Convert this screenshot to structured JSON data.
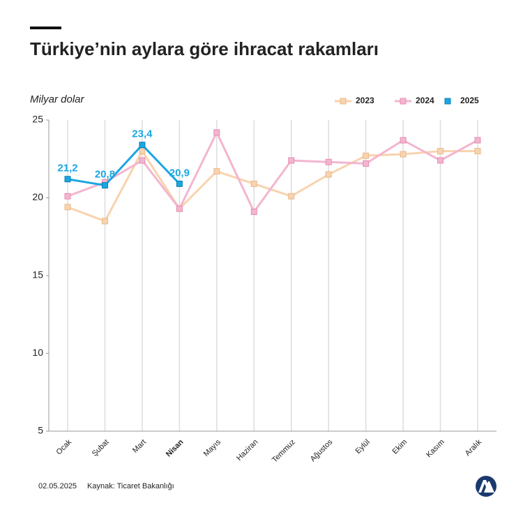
{
  "chart_data": {
    "type": "line",
    "title": "Türkiye’nin aylara göre ihracat rakamları",
    "y_label": "Milyar dolar",
    "categories": [
      "Ocak",
      "Şubat",
      "Mart",
      "Nisan",
      "Mayıs",
      "Haziran",
      "Temmuz",
      "Ağustos",
      "Eylül",
      "Ekim",
      "Kasım",
      "Aralık"
    ],
    "bold_category_index": 3,
    "series": [
      {
        "name": "2023",
        "color": "#f8d3ae",
        "values": [
          19.4,
          18.5,
          23.0,
          19.3,
          21.7,
          20.9,
          20.1,
          21.5,
          22.7,
          22.8,
          23.0,
          23.0
        ]
      },
      {
        "name": "2024",
        "color": "#f3b5cf",
        "values": [
          20.1,
          21.0,
          22.4,
          19.3,
          24.2,
          19.1,
          22.4,
          22.3,
          22.2,
          23.7,
          22.4,
          23.7
        ]
      },
      {
        "name": "2025",
        "color": "#1ba6e1",
        "values": [
          21.2,
          20.8,
          23.4,
          20.9,
          null,
          null,
          null,
          null,
          null,
          null,
          null,
          null
        ],
        "value_labels": [
          "21,2",
          "20,8",
          "23,4",
          "20,9",
          null,
          null,
          null,
          null,
          null,
          null,
          null,
          null
        ]
      }
    ],
    "ylim": [
      5,
      25
    ],
    "yticks": [
      5,
      10,
      15,
      20,
      25
    ],
    "grid": true,
    "legend": "top-right",
    "date": "02.05.2025",
    "source": "Kaynak: Ticaret Bakanlığı"
  }
}
